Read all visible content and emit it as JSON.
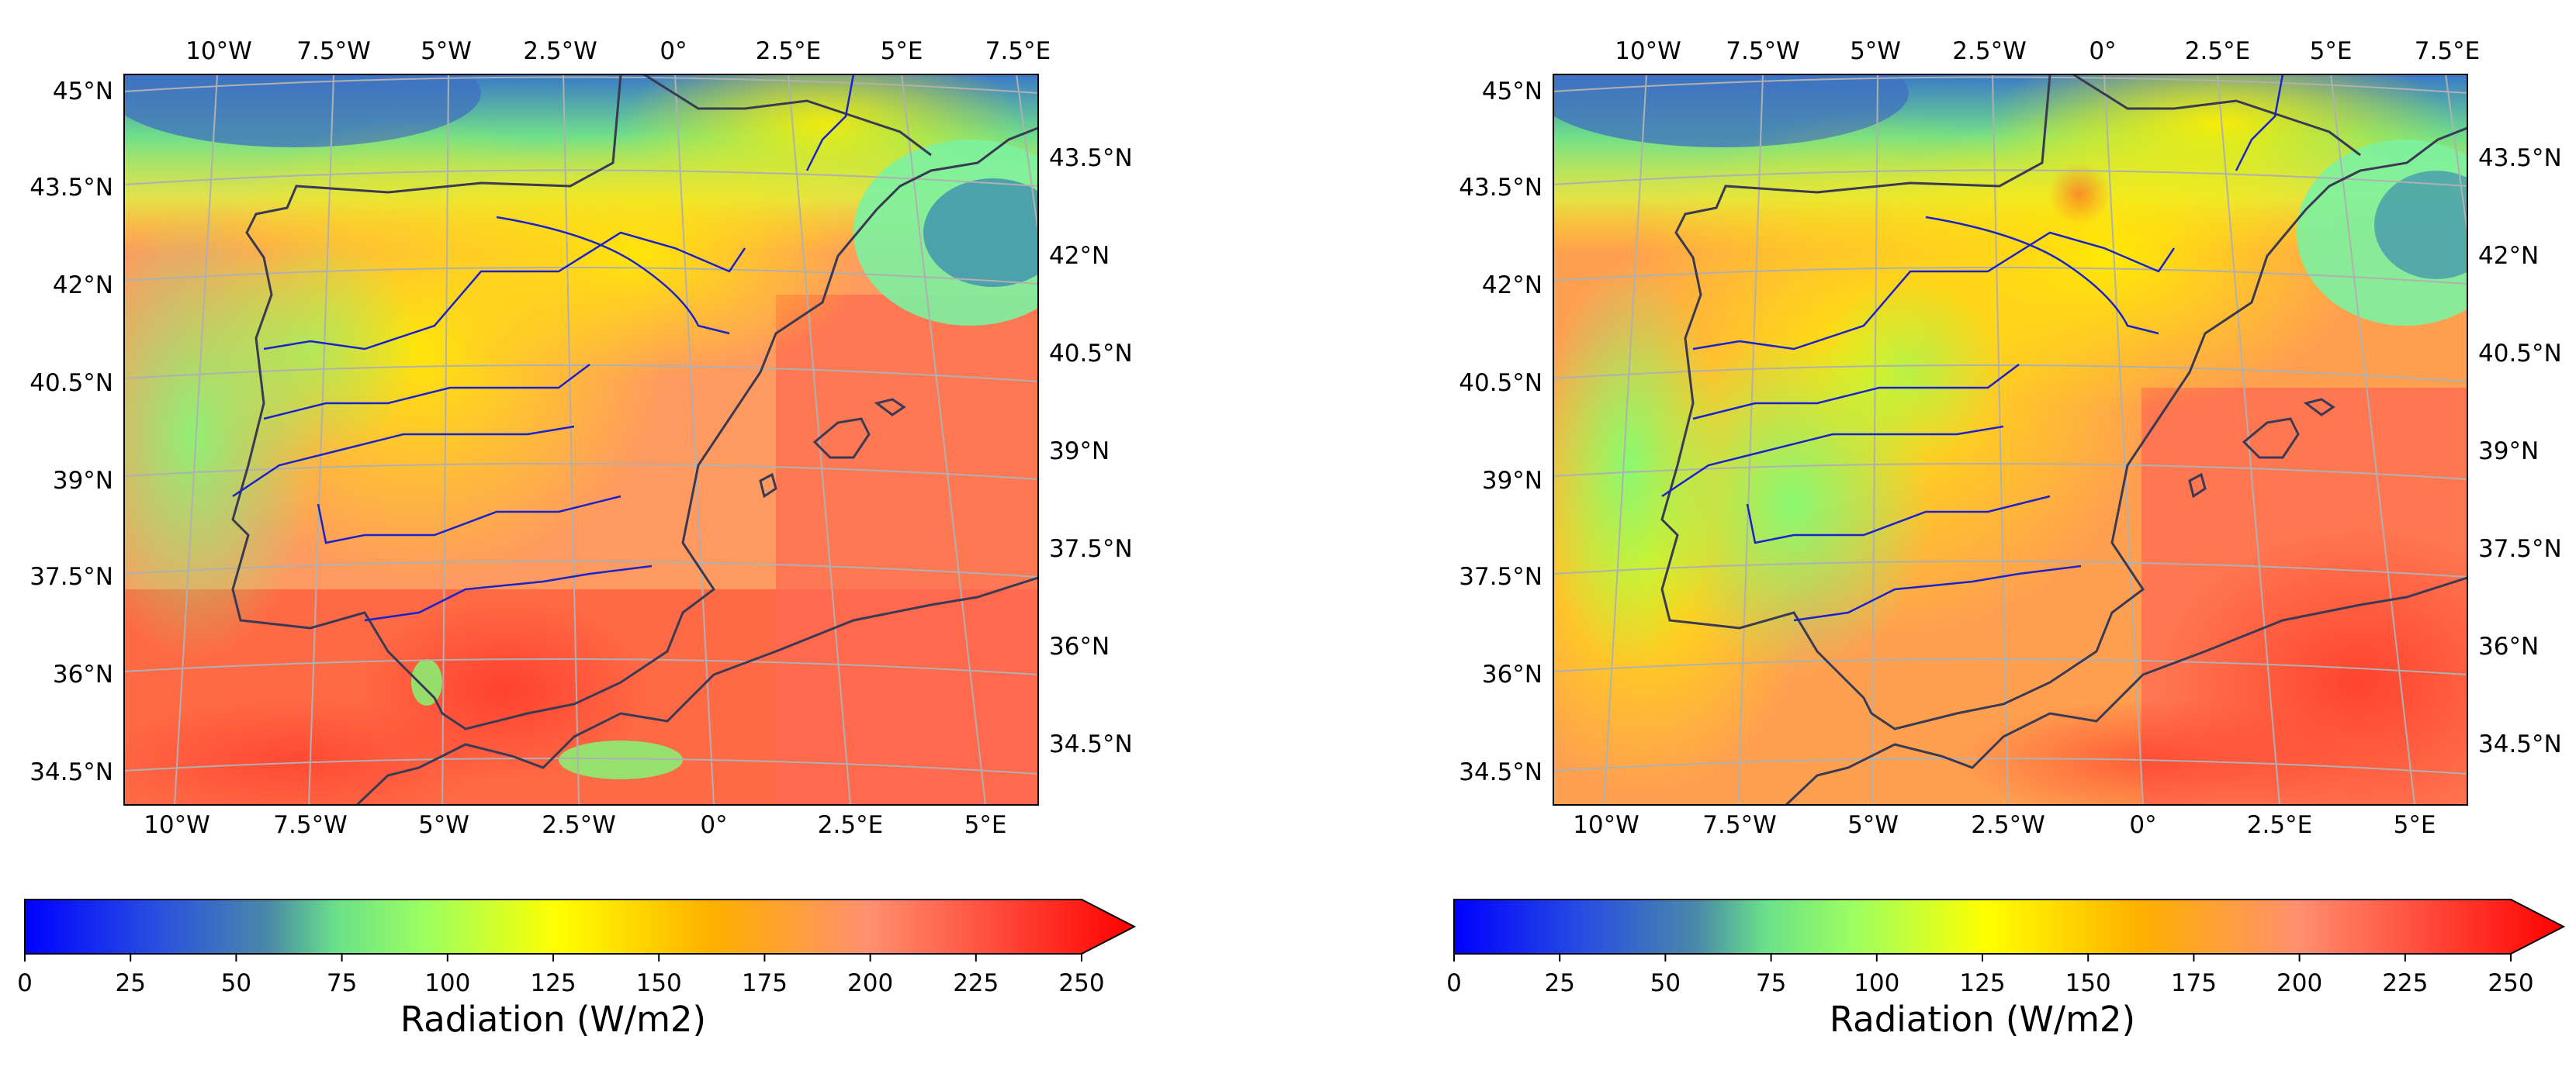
{
  "maps": [
    {
      "id": "left",
      "top_lon_labels": [
        "10°W",
        "7.5°W",
        "5°W",
        "2.5°W",
        "0°",
        "2.5°E",
        "5°E",
        "7.5°E"
      ],
      "bottom_lon_labels": [
        "10°W",
        "7.5°W",
        "5°W",
        "2.5°W",
        "0°",
        "2.5°E",
        "5°E"
      ],
      "left_lat_labels": [
        "45°N",
        "43.5°N",
        "42°N",
        "40.5°N",
        "39°N",
        "37.5°N",
        "36°N",
        "34.5°N"
      ],
      "right_lat_labels": [
        "43.5°N",
        "42°N",
        "40.5°N",
        "39°N",
        "37.5°N",
        "36°N",
        "34.5°N"
      ],
      "colorbar": {
        "ticks": [
          "0",
          "25",
          "50",
          "75",
          "100",
          "125",
          "150",
          "175",
          "200",
          "225",
          "250"
        ],
        "label": "Radiation (W/m2)",
        "extend": "max"
      }
    },
    {
      "id": "right",
      "top_lon_labels": [
        "10°W",
        "7.5°W",
        "5°W",
        "2.5°W",
        "0°",
        "2.5°E",
        "5°E",
        "7.5°E"
      ],
      "bottom_lon_labels": [
        "10°W",
        "7.5°W",
        "5°W",
        "2.5°W",
        "0°",
        "2.5°E",
        "5°E"
      ],
      "left_lat_labels": [
        "45°N",
        "43.5°N",
        "42°N",
        "40.5°N",
        "39°N",
        "37.5°N",
        "36°N",
        "34.5°N"
      ],
      "right_lat_labels": [
        "43.5°N",
        "42°N",
        "40.5°N",
        "39°N",
        "37.5°N",
        "36°N",
        "34.5°N"
      ],
      "colorbar": {
        "ticks": [
          "0",
          "25",
          "50",
          "75",
          "100",
          "125",
          "150",
          "175",
          "200",
          "225",
          "250"
        ],
        "label": "Radiation (W/m2)",
        "extend": "max"
      }
    }
  ],
  "colors": {
    "colormap": [
      "#0000ff",
      "#2a5fd0",
      "#4a8aa8",
      "#7aff70",
      "#ffff00",
      "#ffb400",
      "#ff8a70",
      "#ff0000"
    ],
    "coastline": "#3a3a55",
    "rivers": "#1a22cc",
    "gridlines": "#b0b0b0"
  }
}
